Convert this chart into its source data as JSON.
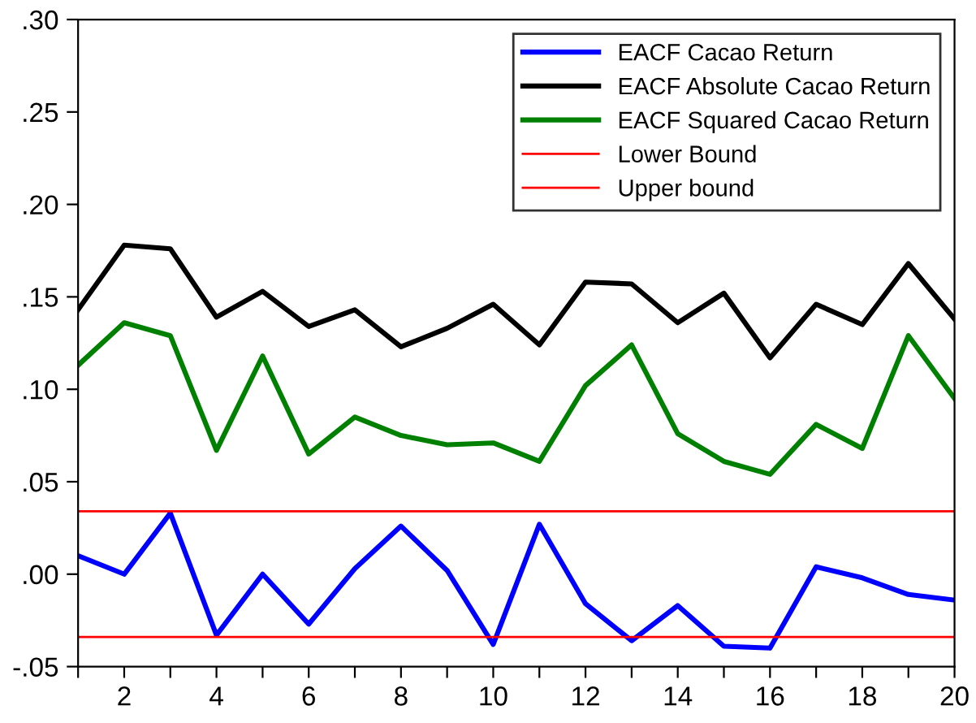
{
  "chart_data": {
    "type": "line",
    "x": [
      1,
      2,
      3,
      4,
      5,
      6,
      7,
      8,
      9,
      10,
      11,
      12,
      13,
      14,
      15,
      16,
      17,
      18,
      19,
      20
    ],
    "series": [
      {
        "name": "EACF Cacao Return",
        "color": "#0000ff",
        "values": [
          0.01,
          0.0,
          0.033,
          -0.033,
          0.0,
          -0.027,
          0.003,
          0.026,
          0.002,
          -0.038,
          0.027,
          -0.016,
          -0.036,
          -0.017,
          -0.039,
          -0.04,
          0.004,
          -0.002,
          -0.011,
          -0.014
        ]
      },
      {
        "name": "EACF Absolute Cacao Return",
        "color": "#000000",
        "values": [
          0.143,
          0.178,
          0.176,
          0.139,
          0.153,
          0.134,
          0.143,
          0.123,
          0.133,
          0.146,
          0.124,
          0.158,
          0.157,
          0.136,
          0.152,
          0.117,
          0.146,
          0.135,
          0.168,
          0.138
        ]
      },
      {
        "name": "EACF Squared Cacao Return",
        "color": "#008000",
        "values": [
          0.113,
          0.136,
          0.129,
          0.067,
          0.118,
          0.065,
          0.085,
          0.075,
          0.07,
          0.071,
          0.061,
          0.102,
          0.124,
          0.076,
          0.061,
          0.054,
          0.081,
          0.068,
          0.129,
          0.095
        ]
      },
      {
        "name": "Lower Bound",
        "color": "#ff0000",
        "values": [
          -0.034,
          -0.034,
          -0.034,
          -0.034,
          -0.034,
          -0.034,
          -0.034,
          -0.034,
          -0.034,
          -0.034,
          -0.034,
          -0.034,
          -0.034,
          -0.034,
          -0.034,
          -0.034,
          -0.034,
          -0.034,
          -0.034,
          -0.034
        ]
      },
      {
        "name": "Upper bound",
        "color": "#ff0000",
        "values": [
          0.034,
          0.034,
          0.034,
          0.034,
          0.034,
          0.034,
          0.034,
          0.034,
          0.034,
          0.034,
          0.034,
          0.034,
          0.034,
          0.034,
          0.034,
          0.034,
          0.034,
          0.034,
          0.034,
          0.034
        ]
      }
    ],
    "xlim": [
      1,
      20
    ],
    "xticks": [
      {
        "value": 1,
        "label": null
      },
      2,
      {
        "value": 3,
        "label": null
      },
      4,
      {
        "value": 5,
        "label": null
      },
      6,
      {
        "value": 7,
        "label": null
      },
      8,
      {
        "value": 9,
        "label": null
      },
      10,
      {
        "value": 11,
        "label": null
      },
      12,
      {
        "value": 13,
        "label": null
      },
      14,
      {
        "value": 15,
        "label": null
      },
      16,
      {
        "value": 17,
        "label": null
      },
      18,
      {
        "value": 19,
        "label": null
      },
      20
    ],
    "ylim": [
      -0.05,
      0.3
    ],
    "yticks": [
      {
        "value": -0.05,
        "label": "-.05"
      },
      {
        "value": 0.0,
        "label": ".00"
      },
      {
        "value": 0.05,
        "label": ".05"
      },
      {
        "value": 0.1,
        "label": ".10"
      },
      {
        "value": 0.15,
        "label": ".15"
      },
      {
        "value": 0.2,
        "label": ".20"
      },
      {
        "value": 0.25,
        "label": ".25"
      },
      {
        "value": 0.3,
        "label": ".30"
      }
    ],
    "grid": false,
    "legend": "top right",
    "marker": "none",
    "line_style": "solid"
  }
}
